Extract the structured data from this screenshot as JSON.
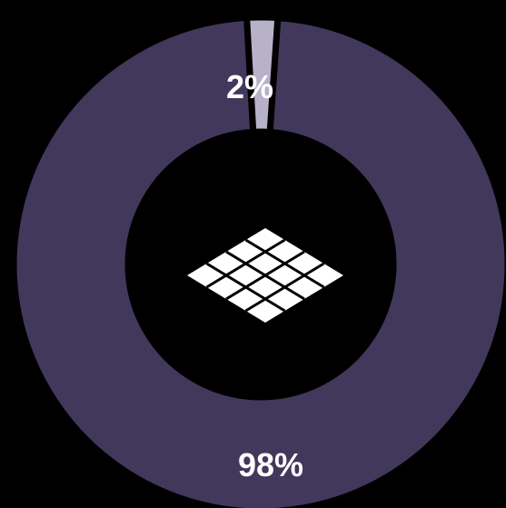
{
  "chart_data": {
    "type": "pie",
    "style": "donut",
    "categories": [
      "",
      ""
    ],
    "values": [
      98,
      2
    ],
    "labels": [
      "98%",
      "2%"
    ],
    "colors": [
      "#41385c",
      "#b8b2c8"
    ],
    "slice_separator_color": "#000000",
    "background": "#000000",
    "center_icon": "tile-grid-icon",
    "center_icon_color": "#ffffff",
    "title": "",
    "legend": "none"
  }
}
